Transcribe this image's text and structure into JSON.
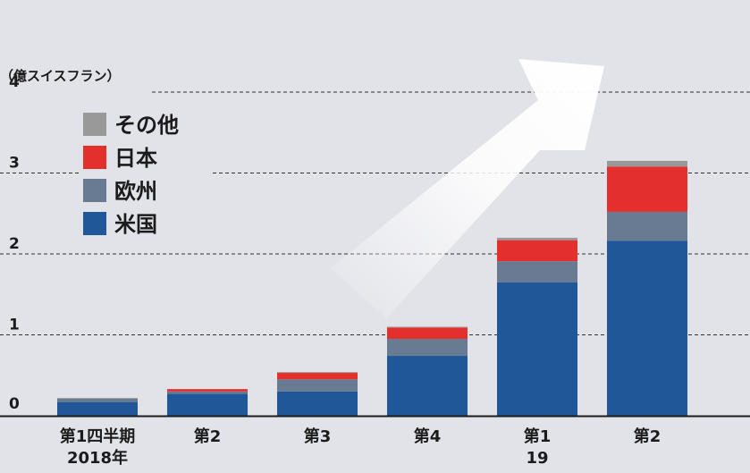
{
  "chart_data": {
    "type": "bar",
    "stacked": true,
    "unit_label": "（億スイスフラン）",
    "y_ticks": [
      "0",
      "1",
      "2",
      "3",
      "4"
    ],
    "ylim": [
      0,
      4
    ],
    "categories": [
      [
        "第1四半期",
        "2018年"
      ],
      [
        "第2"
      ],
      [
        "第3"
      ],
      [
        "第4"
      ],
      [
        "第1",
        "19"
      ],
      [
        "第2"
      ]
    ],
    "series": [
      {
        "name": "米国",
        "color": "#1f5799",
        "values": [
          0.17,
          0.27,
          0.3,
          0.74,
          1.65,
          2.16
        ]
      },
      {
        "name": "欧州",
        "color": "#687b92",
        "values": [
          0.04,
          0.03,
          0.15,
          0.21,
          0.26,
          0.36
        ]
      },
      {
        "name": "日本",
        "color": "#e3302c",
        "values": [
          0.0,
          0.03,
          0.08,
          0.14,
          0.26,
          0.56
        ]
      },
      {
        "name": "その他",
        "color": "#999999",
        "values": [
          0.01,
          0.0,
          0.01,
          0.01,
          0.03,
          0.07
        ]
      }
    ],
    "legend_order": [
      "その他",
      "日本",
      "欧州",
      "米国"
    ],
    "legend_placement": "top-left",
    "grid": true,
    "annotation": "upward arrow"
  }
}
